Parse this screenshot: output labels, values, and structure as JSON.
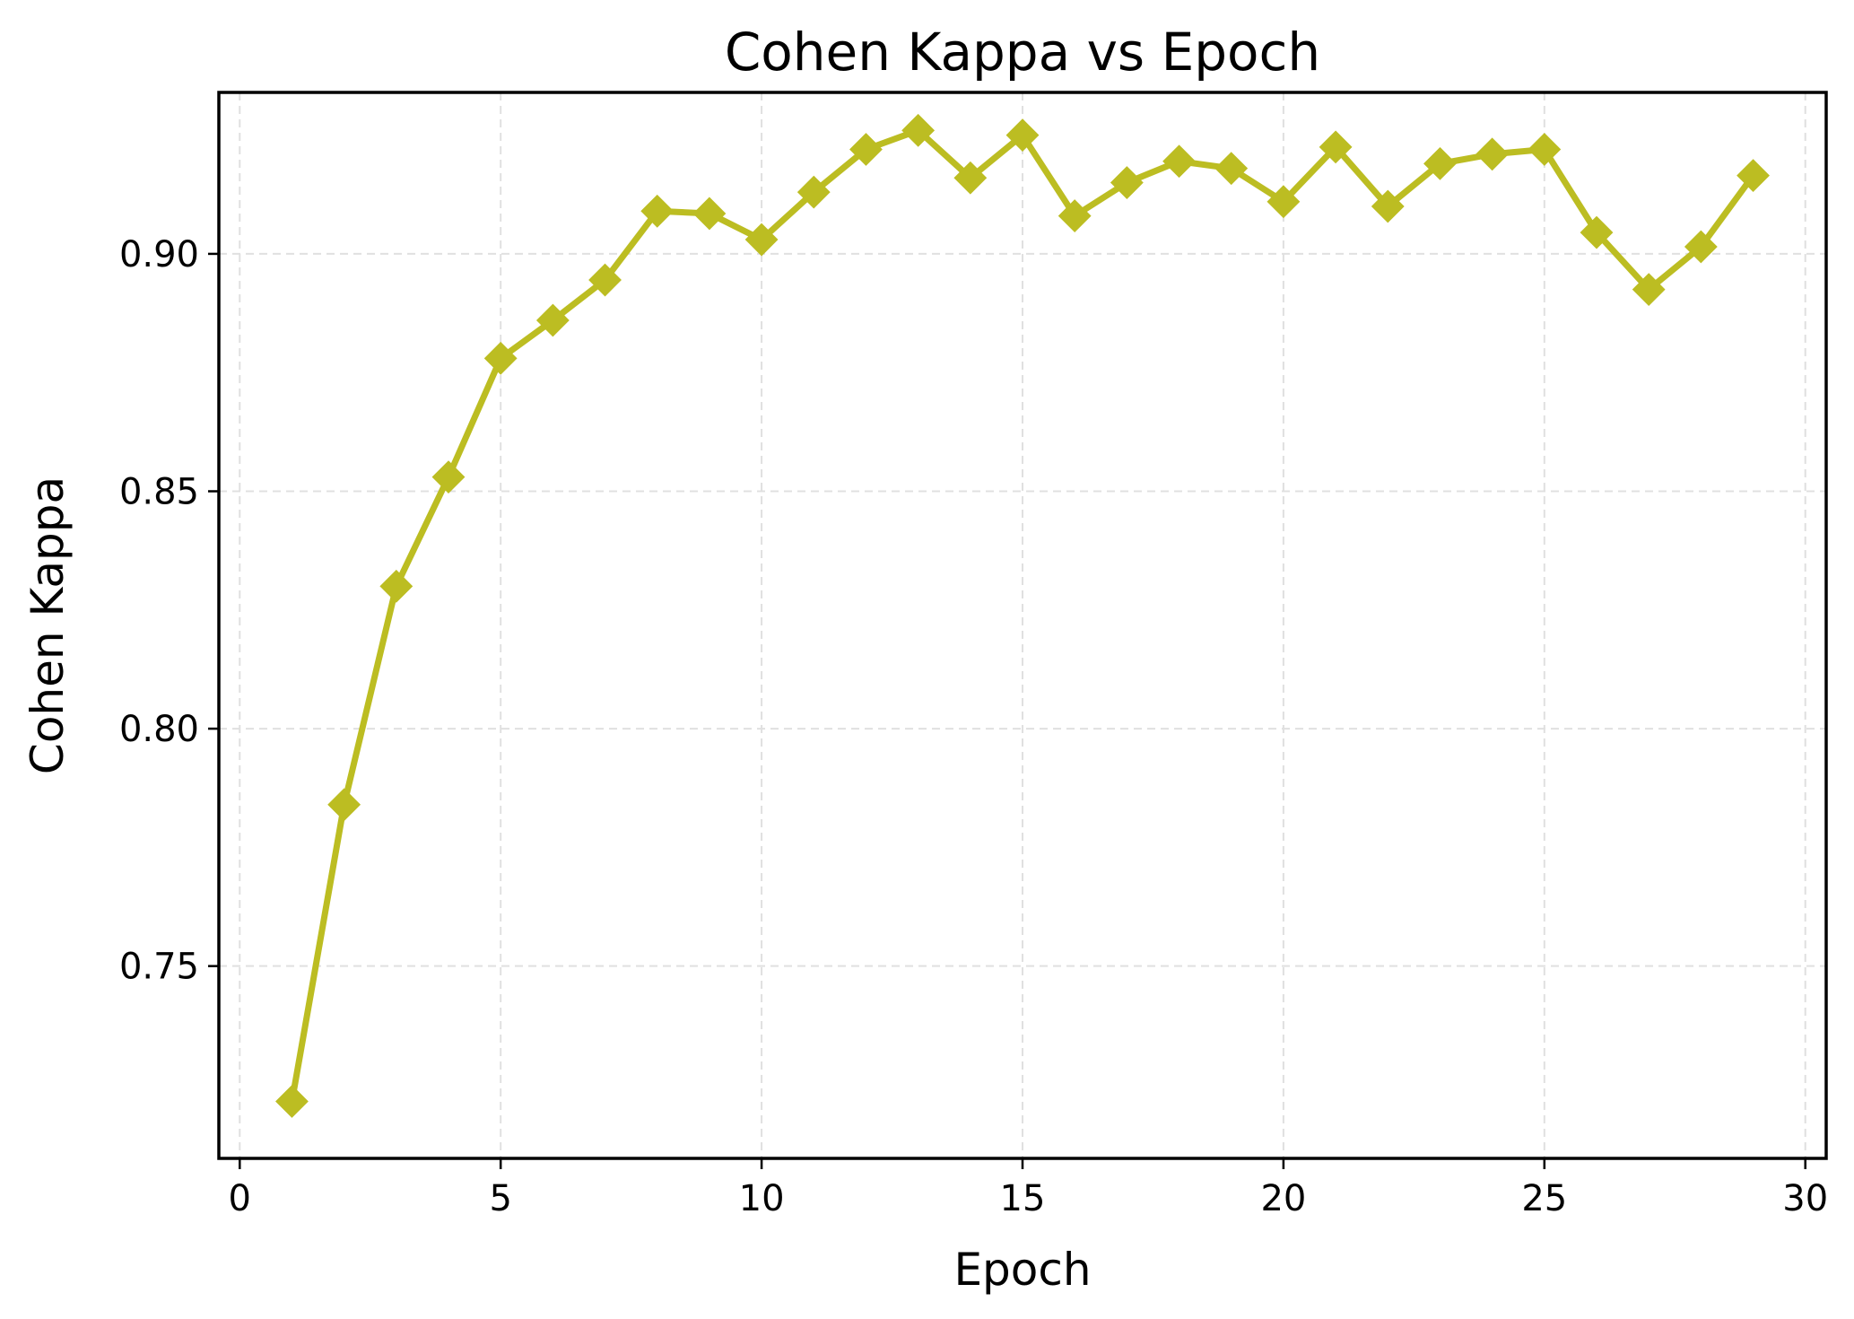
{
  "chart_data": {
    "type": "line",
    "title": "Cohen Kappa vs Epoch",
    "xlabel": "Epoch",
    "ylabel": "Cohen Kappa",
    "xlim": [
      -0.4,
      30.4
    ],
    "ylim": [
      0.7095,
      0.934
    ],
    "xticks": [
      0,
      5,
      10,
      15,
      20,
      25,
      30
    ],
    "xtick_labels": [
      "0",
      "5",
      "10",
      "15",
      "20",
      "25",
      "30"
    ],
    "yticks": [
      0.75,
      0.8,
      0.85,
      0.9
    ],
    "ytick_labels": [
      "0.75",
      "0.80",
      "0.85",
      "0.90"
    ],
    "grid": true,
    "legend": "none",
    "series": [
      {
        "color": "#bcbd22",
        "marker": "diamond",
        "x": [
          1,
          2,
          3,
          4,
          5,
          6,
          7,
          8,
          9,
          10,
          11,
          12,
          13,
          14,
          15,
          16,
          17,
          18,
          19,
          20,
          21,
          22,
          23,
          24,
          25,
          26,
          27,
          28,
          29
        ],
        "values": [
          0.7215,
          0.784,
          0.83,
          0.853,
          0.878,
          0.886,
          0.8945,
          0.909,
          0.9085,
          0.903,
          0.913,
          0.922,
          0.926,
          0.916,
          0.925,
          0.908,
          0.915,
          0.9195,
          0.918,
          0.911,
          0.9225,
          0.91,
          0.919,
          0.921,
          0.922,
          0.9045,
          0.8925,
          0.9015,
          0.9165
        ]
      }
    ]
  }
}
